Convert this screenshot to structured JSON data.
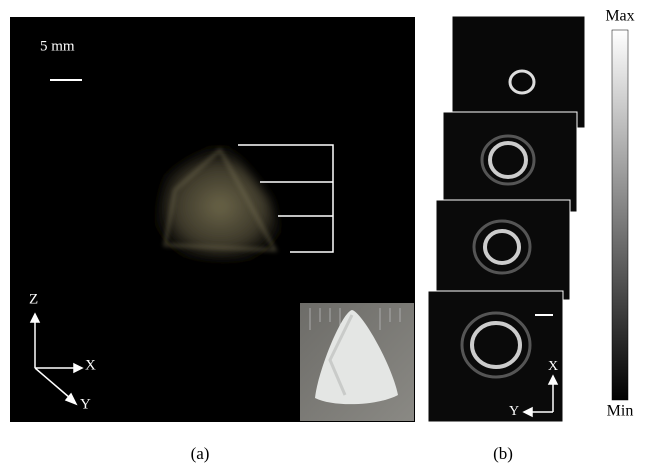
{
  "panel_a": {
    "scale_label": "5 mm",
    "axes": {
      "z": "Z",
      "x": "X",
      "y": "Y"
    },
    "caption": "(a)"
  },
  "panel_b": {
    "axes": {
      "x": "X",
      "y": "Y"
    },
    "colorbar": {
      "max": "Max",
      "min": "Min"
    },
    "caption": "(b)"
  }
}
